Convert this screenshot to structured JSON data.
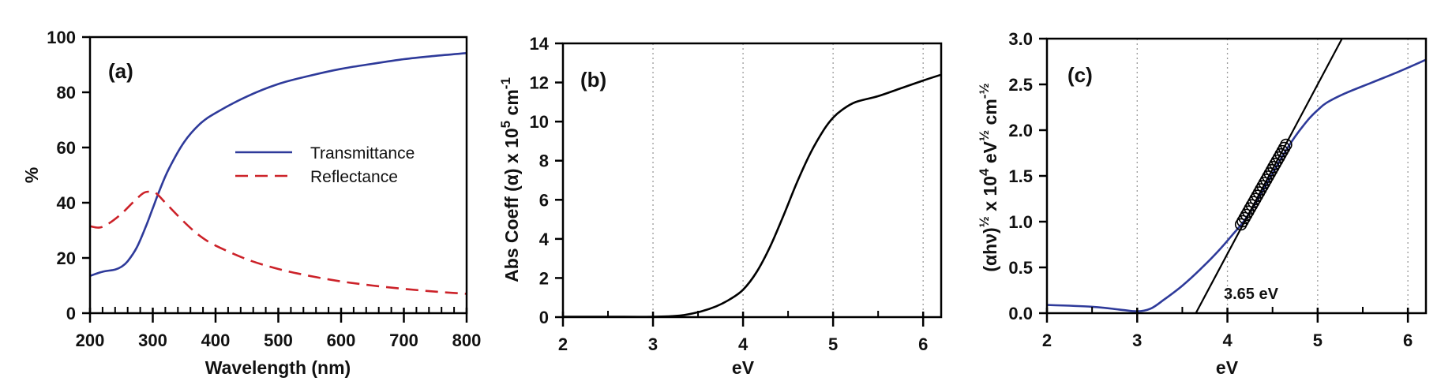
{
  "figure": {
    "panels": [
      "(a)",
      "(b)",
      "(c)"
    ]
  },
  "colors": {
    "transmittance": "#2e3a9a",
    "reflectance": "#cc2229",
    "abs_coeff": "#000000",
    "tauc": "#2e3a9a",
    "fit_line": "#000000",
    "axis": "#000000",
    "grid": "#9a9a9a"
  },
  "chart_data": [
    {
      "id": "a",
      "type": "line",
      "panel_label": "(a)",
      "title": "",
      "xlabel": "Wavelength (nm)",
      "ylabel": "%",
      "xlim": [
        200,
        800
      ],
      "ylim": [
        0,
        100
      ],
      "xticks": [
        200,
        300,
        400,
        500,
        600,
        700,
        800
      ],
      "yticks": [
        0,
        20,
        40,
        60,
        80,
        100
      ],
      "grid": false,
      "legend": {
        "position": "center-right",
        "entries": [
          "Transmittance",
          "Reflectance"
        ]
      },
      "series": [
        {
          "name": "Transmittance",
          "style": "solid",
          "x": [
            200,
            220,
            240,
            250,
            260,
            275,
            290,
            300,
            310,
            325,
            350,
            375,
            400,
            450,
            500,
            550,
            600,
            650,
            700,
            750,
            800
          ],
          "y": [
            13.5,
            15,
            15.8,
            16.8,
            18.8,
            24,
            32,
            38,
            44,
            52,
            62,
            68.5,
            72.5,
            78.5,
            83,
            86,
            88.5,
            90.3,
            92,
            93.2,
            94.2
          ]
        },
        {
          "name": "Reflectance",
          "style": "dashed",
          "x": [
            200,
            215,
            230,
            250,
            270,
            285,
            295,
            305,
            320,
            350,
            375,
            400,
            450,
            500,
            550,
            600,
            650,
            700,
            750,
            800
          ],
          "y": [
            31.5,
            31,
            32.5,
            36,
            40.5,
            43.5,
            44,
            43.5,
            40,
            33,
            28,
            24.5,
            19.5,
            16,
            13.5,
            11.5,
            10,
            8.8,
            7.8,
            7
          ]
        }
      ]
    },
    {
      "id": "b",
      "type": "line",
      "panel_label": "(b)",
      "title": "",
      "xlabel": "eV",
      "ylabel": "Abs Coeff (α) x 10⁵ cm⁻¹",
      "xlim": [
        2,
        6.2
      ],
      "ylim": [
        0,
        14
      ],
      "xticks": [
        2,
        3,
        4,
        5,
        6
      ],
      "yticks": [
        0,
        2,
        4,
        6,
        8,
        10,
        12,
        14
      ],
      "grid": "vertical dotted at 3,4,5,6",
      "series": [
        {
          "name": "Abs Coeff",
          "style": "solid",
          "x": [
            2,
            2.5,
            3.0,
            3.3,
            3.5,
            3.7,
            3.85,
            4.0,
            4.15,
            4.3,
            4.45,
            4.6,
            4.75,
            4.9,
            5.0,
            5.1,
            5.25,
            5.5,
            5.75,
            6.0,
            6.2
          ],
          "y": [
            0.02,
            0.02,
            0.02,
            0.08,
            0.25,
            0.55,
            0.9,
            1.4,
            2.3,
            3.6,
            5.2,
            6.9,
            8.4,
            9.6,
            10.2,
            10.6,
            11.0,
            11.3,
            11.7,
            12.1,
            12.4
          ]
        }
      ]
    },
    {
      "id": "c",
      "type": "line",
      "panel_label": "(c)",
      "title": "",
      "xlabel": "eV",
      "ylabel": "(αhν)^½ x 10⁴ eV^½ cm^-½",
      "xlim": [
        2,
        6.2
      ],
      "ylim": [
        0,
        3.0
      ],
      "xticks": [
        2,
        3,
        4,
        5,
        6
      ],
      "yticks": [
        0.0,
        0.5,
        1.0,
        1.5,
        2.0,
        2.5,
        3.0
      ],
      "grid": "vertical dotted at 3,4,5,6",
      "annotations": [
        {
          "text": "3.65 eV",
          "x": 3.95,
          "y": 0.22
        }
      ],
      "series": [
        {
          "name": "Tauc plot",
          "style": "solid",
          "x": [
            2.0,
            2.5,
            2.8,
            3.0,
            3.15,
            3.3,
            3.5,
            3.7,
            3.9,
            4.05,
            4.2,
            4.4,
            4.6,
            4.75,
            4.9,
            5.0,
            5.1,
            5.3,
            5.6,
            5.9,
            6.2
          ],
          "y": [
            0.09,
            0.07,
            0.04,
            0.02,
            0.05,
            0.15,
            0.3,
            0.48,
            0.68,
            0.85,
            1.03,
            1.35,
            1.7,
            1.93,
            2.12,
            2.22,
            2.3,
            2.4,
            2.52,
            2.64,
            2.77
          ]
        },
        {
          "name": "Linear fit points",
          "style": "markers",
          "marker": "open-circle",
          "x_range": [
            4.15,
            4.65
          ],
          "y_range": [
            0.97,
            1.84
          ]
        },
        {
          "name": "Linear fit (extrapolated)",
          "style": "solid",
          "x": [
            3.65,
            5.27
          ],
          "y": [
            0.0,
            3.0
          ]
        }
      ]
    }
  ]
}
